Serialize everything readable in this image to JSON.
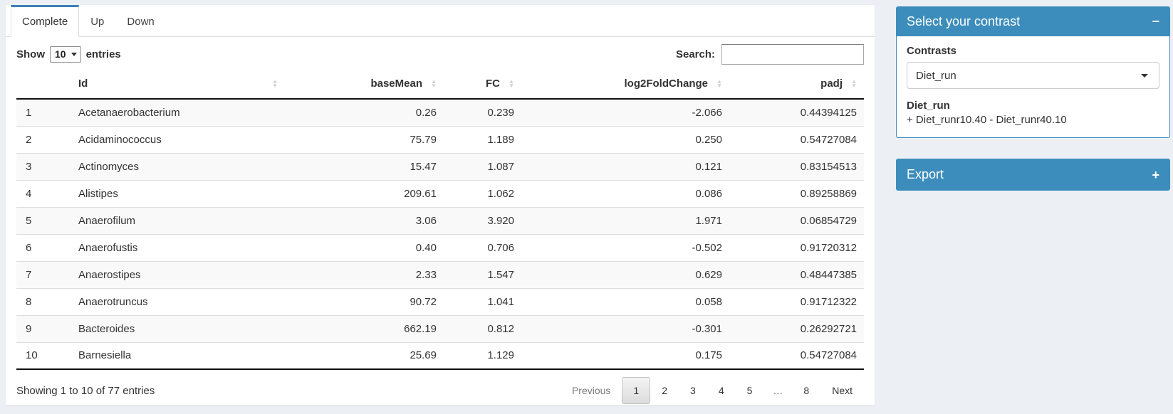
{
  "tabs": [
    {
      "label": "Complete",
      "active": true
    },
    {
      "label": "Up",
      "active": false
    },
    {
      "label": "Down",
      "active": false
    }
  ],
  "length_control": {
    "prefix": "Show",
    "value": "10",
    "suffix": "entries"
  },
  "search": {
    "label": "Search:",
    "value": ""
  },
  "table": {
    "columns": [
      "",
      "Id",
      "baseMean",
      "FC",
      "log2FoldChange",
      "padj"
    ],
    "column_keys": [
      "rownum",
      "id",
      "basemean",
      "fc",
      "log2foldchange",
      "padj"
    ],
    "rows": [
      [
        "1",
        "Acetanaerobacterium",
        "0.26",
        "0.239",
        "-2.066",
        "0.44394125"
      ],
      [
        "2",
        "Acidaminococcus",
        "75.79",
        "1.189",
        "0.250",
        "0.54727084"
      ],
      [
        "3",
        "Actinomyces",
        "15.47",
        "1.087",
        "0.121",
        "0.83154513"
      ],
      [
        "4",
        "Alistipes",
        "209.61",
        "1.062",
        "0.086",
        "0.89258869"
      ],
      [
        "5",
        "Anaerofilum",
        "3.06",
        "3.920",
        "1.971",
        "0.06854729"
      ],
      [
        "6",
        "Anaerofustis",
        "0.40",
        "0.706",
        "-0.502",
        "0.91720312"
      ],
      [
        "7",
        "Anaerostipes",
        "2.33",
        "1.547",
        "0.629",
        "0.48447385"
      ],
      [
        "8",
        "Anaerotruncus",
        "90.72",
        "1.041",
        "0.058",
        "0.91712322"
      ],
      [
        "9",
        "Bacteroides",
        "662.19",
        "0.812",
        "-0.301",
        "0.26292721"
      ],
      [
        "10",
        "Barnesiella",
        "25.69",
        "1.129",
        "0.175",
        "0.54727084"
      ]
    ]
  },
  "footer": {
    "info": "Showing 1 to 10 of 77 entries",
    "pagination": [
      {
        "label": "Previous",
        "key": "previous",
        "state": "disabled"
      },
      {
        "label": "1",
        "key": "page-1",
        "state": "active"
      },
      {
        "label": "2",
        "key": "page-2",
        "state": "normal"
      },
      {
        "label": "3",
        "key": "page-3",
        "state": "normal"
      },
      {
        "label": "4",
        "key": "page-4",
        "state": "normal"
      },
      {
        "label": "5",
        "key": "page-5",
        "state": "normal"
      },
      {
        "label": "…",
        "key": "ellipsis",
        "state": "ellipsis"
      },
      {
        "label": "8",
        "key": "page-8",
        "state": "normal"
      },
      {
        "label": "Next",
        "key": "next",
        "state": "normal"
      }
    ]
  },
  "sidebar": {
    "contrast_box": {
      "title": "Select your contrast",
      "collapse_icon": "−",
      "label": "Contrasts",
      "selected": "Diet_run",
      "detail_title": "Diet_run",
      "detail_formula": "+ Diet_runr10.40 - Diet_runr40.10"
    },
    "export_box": {
      "title": "Export",
      "collapse_icon": "+"
    }
  },
  "colors": {
    "accent": "#3c8dbc",
    "background": "#ecf0f5",
    "stripe": "#f9f9f9"
  }
}
